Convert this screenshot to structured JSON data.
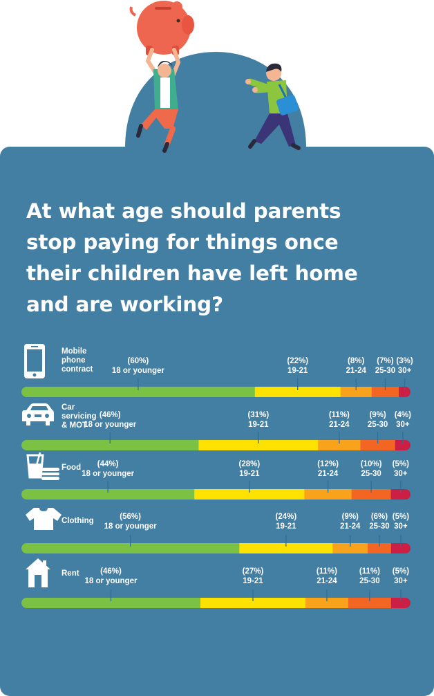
{
  "colors": {
    "panel": "#437ea3",
    "seg": [
      "#7bc144",
      "#fde100",
      "#f9a21b",
      "#f26522",
      "#cc1f45"
    ],
    "tick": "#2f6f98",
    "icon": "#ffffff",
    "text": "#ffffff"
  },
  "title_lines": [
    "At what age should parents",
    "stop paying for things once",
    "their children have left home",
    "and are working?"
  ],
  "chart_data": {
    "type": "bar",
    "subtype": "stacked-horizontal-100",
    "title": "At what age should parents stop paying for things once their children have left home and are working?",
    "series_names": [
      "18 or younger",
      "19-21",
      "21-24",
      "25-30",
      "30+"
    ],
    "categories": [
      {
        "icon": "mobile-phone-icon",
        "label_lines": [
          "Mobile",
          "phone",
          "contract"
        ],
        "labels": [
          "(60%)",
          "(22%)",
          "(8%)",
          "(7%)",
          "(3%)"
        ],
        "values": [
          60,
          22,
          8,
          7,
          3
        ]
      },
      {
        "icon": "car-icon",
        "label_lines": [
          "Car",
          "servicing",
          "& MOT"
        ],
        "labels": [
          "(46%)",
          "(31%)",
          "(11%)",
          "(9%)",
          "(4%)"
        ],
        "values": [
          46,
          31,
          11,
          9,
          4
        ]
      },
      {
        "icon": "food-icon",
        "label_lines": [
          "Food"
        ],
        "labels": [
          "(44%)",
          "(28%)",
          "(12%)",
          "(10%)",
          "(5%)"
        ],
        "values": [
          44,
          28,
          12,
          10,
          5
        ]
      },
      {
        "icon": "tshirt-icon",
        "label_lines": [
          "Clothing"
        ],
        "labels": [
          "(56%)",
          "(24%)",
          "(9%)",
          "(6%)",
          "(5%)"
        ],
        "values": [
          56,
          24,
          9,
          6,
          5
        ]
      },
      {
        "icon": "house-icon",
        "label_lines": [
          "Rent"
        ],
        "labels": [
          "(46%)",
          "(27%)",
          "(11%)",
          "(11%)",
          "(5%)"
        ],
        "values": [
          46,
          27,
          11,
          11,
          5
        ]
      }
    ]
  }
}
